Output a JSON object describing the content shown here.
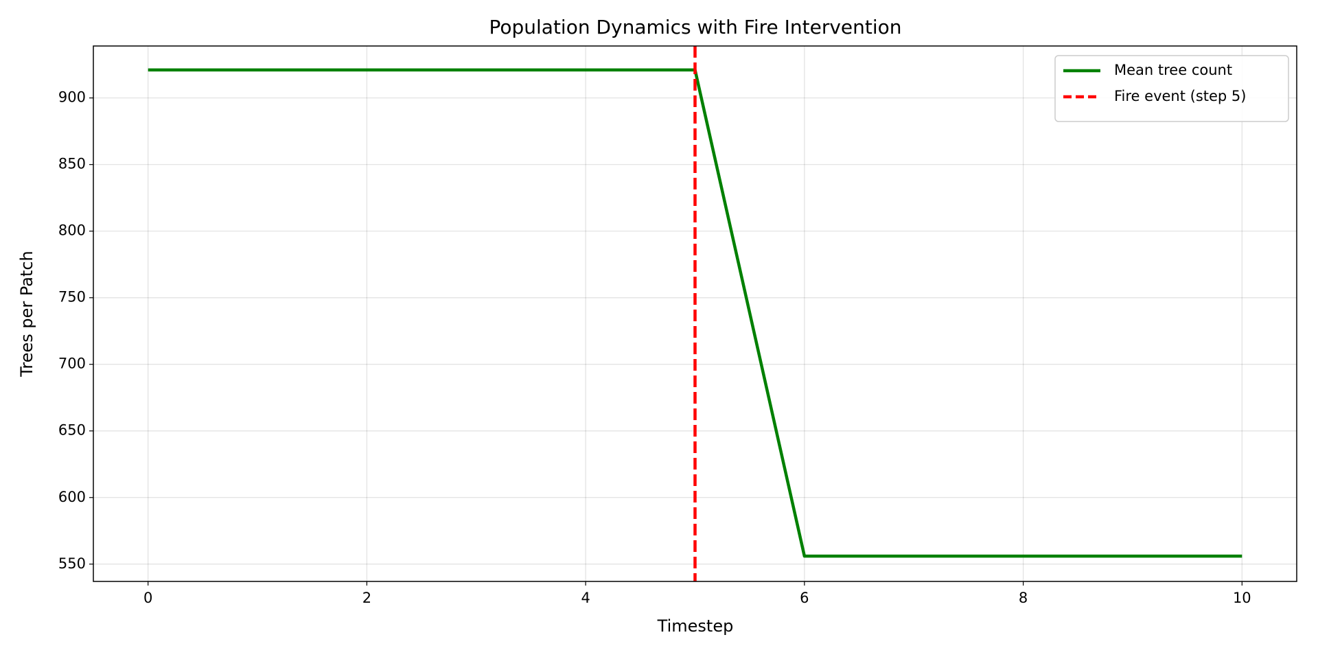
{
  "chart_data": {
    "type": "line",
    "title": "Population Dynamics with Fire Intervention",
    "x_label": "Timestep",
    "y_label": "Trees per Patch",
    "x": [
      0,
      1,
      2,
      3,
      4,
      5,
      6,
      7,
      8,
      9,
      10
    ],
    "series": [
      {
        "name": "Mean tree count",
        "color": "#008000",
        "values": [
          921,
          921,
          921,
          921,
          921,
          921,
          556,
          556,
          556,
          556,
          556
        ]
      }
    ],
    "vline": {
      "x": 5,
      "name": "Fire event (step 5)",
      "color": "#ff0000",
      "style": "dashed"
    },
    "xlim": [
      -0.5,
      10.5
    ],
    "xticks": [
      0,
      2,
      4,
      6,
      8,
      10
    ],
    "ylim": [
      537,
      939
    ],
    "yticks": [
      550,
      600,
      650,
      700,
      750,
      800,
      850,
      900
    ],
    "grid": true,
    "legend": "upper right"
  }
}
